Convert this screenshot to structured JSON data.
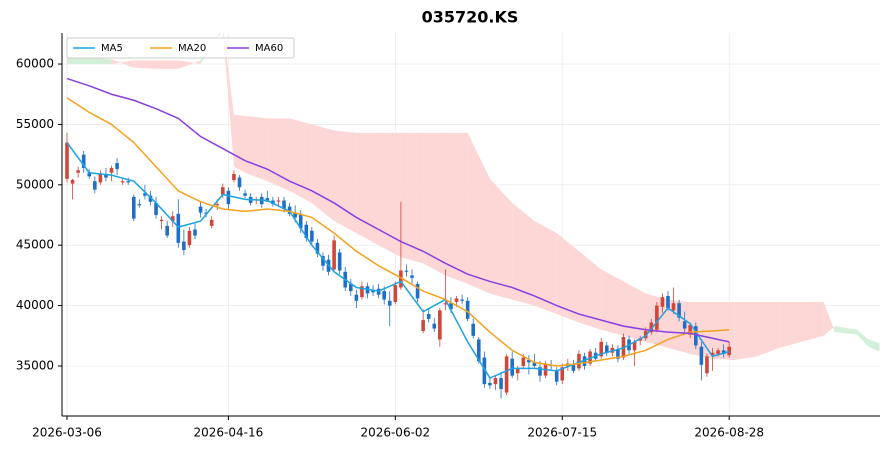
{
  "chart_data": {
    "type": "candlestick",
    "title": "035720.KS",
    "xlim": [
      -0.9,
      146.1
    ],
    "xticks": [
      {
        "value": 0,
        "label": "2026-03-06"
      },
      {
        "value": 29,
        "label": "2026-04-16"
      },
      {
        "value": 59,
        "label": "2026-06-02"
      },
      {
        "value": 89,
        "label": "2026-07-15"
      },
      {
        "value": 119,
        "label": "2026-08-28"
      }
    ],
    "ylim": [
      30860,
      62570
    ],
    "yticks": [
      35000,
      40000,
      45000,
      50000,
      55000,
      60000
    ],
    "grid": true,
    "legend": "upper left",
    "candles": {
      "up_color": "#d0463a",
      "down_color": "#1f6fc8",
      "ohlc": [
        [
          50500,
          54300,
          50200,
          53500
        ],
        [
          50100,
          50500,
          48800,
          50400
        ],
        [
          51000,
          51500,
          50600,
          51200
        ],
        [
          52500,
          52800,
          51000,
          51400
        ],
        [
          51000,
          51300,
          50500,
          50700
        ],
        [
          50300,
          50700,
          49300,
          49600
        ],
        [
          50200,
          51200,
          50000,
          50900
        ],
        [
          50900,
          51400,
          50300,
          50600
        ],
        [
          51000,
          51600,
          50300,
          51400
        ],
        [
          51800,
          52200,
          50800,
          51300
        ],
        [
          50200,
          50500,
          50000,
          50300
        ],
        [
          50300,
          50600,
          50000,
          50200
        ],
        [
          49000,
          49200,
          47000,
          47200
        ],
        [
          48400,
          48800,
          48100,
          48300
        ],
        [
          49300,
          50000,
          48800,
          49100
        ],
        [
          49100,
          49500,
          48300,
          48600
        ],
        [
          48500,
          49000,
          47200,
          47500
        ],
        [
          47000,
          47400,
          46300,
          47100
        ],
        [
          46600,
          47000,
          45600,
          45800
        ],
        [
          47000,
          47800,
          46500,
          47400
        ],
        [
          47600,
          48800,
          44800,
          45200
        ],
        [
          45300,
          46300,
          44200,
          44600
        ],
        [
          45000,
          46500,
          44800,
          46200
        ],
        [
          46300,
          46800,
          45500,
          45800
        ],
        [
          48200,
          48600,
          47300,
          47700
        ],
        [
          47700,
          48000,
          47300,
          47600
        ],
        [
          46600,
          47400,
          46400,
          47100
        ],
        [
          48300,
          48800,
          47900,
          48400
        ],
        [
          49200,
          50100,
          48900,
          49800
        ],
        [
          49500,
          49800,
          48000,
          48400
        ],
        [
          50400,
          51200,
          50200,
          50900
        ],
        [
          50600,
          50800,
          49500,
          49800
        ],
        [
          49300,
          49600,
          48900,
          49100
        ],
        [
          49000,
          49300,
          48300,
          48500
        ],
        [
          48700,
          49000,
          48400,
          48800
        ],
        [
          49000,
          49300,
          48100,
          48400
        ],
        [
          48900,
          49500,
          48600,
          48600
        ],
        [
          48700,
          49000,
          48200,
          48400
        ],
        [
          48600,
          49000,
          48300,
          48700
        ],
        [
          48700,
          49000,
          47700,
          48000
        ],
        [
          48200,
          48500,
          47400,
          47600
        ],
        [
          47700,
          48300,
          46900,
          47300
        ],
        [
          47600,
          47900,
          46000,
          46400
        ],
        [
          46700,
          47000,
          45300,
          45600
        ],
        [
          46200,
          46500,
          45000,
          45300
        ],
        [
          45200,
          45500,
          44000,
          44300
        ],
        [
          44100,
          44400,
          42900,
          43300
        ],
        [
          43800,
          44200,
          42500,
          42800
        ],
        [
          43000,
          45800,
          42800,
          45400
        ],
        [
          44400,
          44700,
          42600,
          42900
        ],
        [
          42800,
          43200,
          41200,
          41500
        ],
        [
          41800,
          42200,
          40800,
          41200
        ],
        [
          40900,
          41300,
          39800,
          40400
        ],
        [
          40700,
          42000,
          40500,
          41600
        ],
        [
          41600,
          41900,
          40600,
          41000
        ],
        [
          41300,
          41700,
          40800,
          41100
        ],
        [
          41400,
          41800,
          40600,
          40900
        ],
        [
          41200,
          41600,
          40100,
          40500
        ],
        [
          40400,
          41200,
          38300,
          40000
        ],
        [
          40300,
          42000,
          40100,
          41700
        ],
        [
          41500,
          48600,
          41300,
          42900
        ],
        [
          42900,
          43400,
          42400,
          42800
        ],
        [
          42500,
          43000,
          41800,
          42300
        ],
        [
          41800,
          42000,
          40300,
          40600
        ],
        [
          37900,
          39700,
          37700,
          38800
        ],
        [
          39300,
          39800,
          38600,
          38900
        ],
        [
          38500,
          39000,
          37800,
          38100
        ],
        [
          37200,
          39800,
          36600,
          39600
        ],
        [
          40100,
          43000,
          39600,
          40200
        ],
        [
          40200,
          40700,
          39400,
          39700
        ],
        [
          40300,
          40800,
          39900,
          40600
        ],
        [
          40500,
          40900,
          40100,
          40400
        ],
        [
          40400,
          40700,
          38700,
          38900
        ],
        [
          38500,
          38900,
          37300,
          37500
        ],
        [
          37200,
          37400,
          35200,
          35400
        ],
        [
          35700,
          36200,
          33200,
          33500
        ],
        [
          33600,
          34000,
          33100,
          33400
        ],
        [
          33500,
          34200,
          33000,
          34000
        ],
        [
          34000,
          34500,
          32300,
          33100
        ],
        [
          32800,
          36000,
          32600,
          35800
        ],
        [
          35600,
          36200,
          34000,
          34200
        ],
        [
          34400,
          35000,
          33800,
          34800
        ],
        [
          35000,
          36000,
          34700,
          35700
        ],
        [
          35500,
          35900,
          34300,
          35300
        ],
        [
          35300,
          36000,
          34800,
          35000
        ],
        [
          34900,
          35400,
          33700,
          34200
        ],
        [
          34200,
          35400,
          34000,
          35200
        ],
        [
          35100,
          35500,
          34700,
          35000
        ],
        [
          34600,
          34900,
          33400,
          33700
        ],
        [
          33800,
          35200,
          33500,
          34900
        ],
        [
          35000,
          35600,
          34600,
          35200
        ],
        [
          35100,
          35500,
          34400,
          34600
        ],
        [
          34800,
          36300,
          34600,
          36000
        ],
        [
          35800,
          36100,
          34700,
          35000
        ],
        [
          35200,
          36400,
          35000,
          36200
        ],
        [
          36100,
          36500,
          35400,
          35600
        ],
        [
          35800,
          37300,
          35600,
          37000
        ],
        [
          36700,
          37000,
          35800,
          36100
        ],
        [
          36100,
          36800,
          35800,
          36500
        ],
        [
          36400,
          36700,
          35300,
          35600
        ],
        [
          35700,
          37700,
          35500,
          37400
        ],
        [
          37200,
          37500,
          36000,
          36300
        ],
        [
          36300,
          37200,
          35000,
          37000
        ],
        [
          37100,
          37500,
          36700,
          37300
        ],
        [
          37300,
          38200,
          37100,
          37900
        ],
        [
          37800,
          38900,
          37600,
          38600
        ],
        [
          38000,
          40300,
          37800,
          40000
        ],
        [
          39900,
          41000,
          39400,
          40700
        ],
        [
          40800,
          41200,
          39600,
          39800
        ],
        [
          39600,
          41500,
          39300,
          40200
        ],
        [
          40200,
          40500,
          38700,
          39000
        ],
        [
          38700,
          39500,
          37800,
          38100
        ],
        [
          37600,
          38600,
          37300,
          38400
        ],
        [
          38300,
          38600,
          36400,
          36700
        ],
        [
          36600,
          37000,
          33800,
          35100
        ],
        [
          34400,
          36000,
          34100,
          35800
        ],
        [
          35900,
          36500,
          34600,
          36100
        ],
        [
          36000,
          36500,
          35800,
          36300
        ],
        [
          36300,
          36800,
          35700,
          36000
        ],
        [
          35900,
          37000,
          35700,
          36600
        ]
      ]
    },
    "cloud": {
      "up_color": "#fdd6d6",
      "down_color": "#d3efd9",
      "x": [
        0,
        4,
        8,
        12,
        16,
        20,
        24,
        28,
        30,
        32,
        36,
        40,
        44,
        48,
        52,
        56,
        60,
        64,
        68,
        72,
        76,
        80,
        84,
        88,
        92,
        96,
        100,
        104,
        108,
        112,
        116,
        120,
        124,
        128,
        136,
        138,
        142,
        144,
        146
      ],
      "span_a": [
        60000,
        60000,
        60000,
        60300,
        60300,
        60300,
        60000,
        63000,
        55800,
        55700,
        55500,
        55500,
        55000,
        54500,
        54300,
        54300,
        54300,
        54300,
        54300,
        54300,
        50500,
        48500,
        47000,
        46000,
        44500,
        43000,
        42000,
        41000,
        40500,
        40300,
        40300,
        40300,
        40300,
        40300,
        40300,
        37800,
        37600,
        36600,
        36200
      ],
      "span_b": [
        60600,
        60500,
        60400,
        59700,
        59600,
        59600,
        60300,
        62800,
        51500,
        51000,
        50300,
        49500,
        48500,
        47000,
        46000,
        45000,
        44000,
        43500,
        42500,
        41800,
        41000,
        40500,
        40000,
        39300,
        38600,
        38000,
        37500,
        37000,
        36500,
        36000,
        35600,
        35500,
        35800,
        36500,
        37500,
        38300,
        38000,
        37200,
        36900
      ]
    },
    "series": [
      {
        "name": "MA5",
        "color": "#1ba3e3",
        "x": [
          0,
          4,
          8,
          12,
          16,
          20,
          24,
          28,
          32,
          36,
          40,
          44,
          48,
          52,
          56,
          60,
          64,
          68,
          72,
          76,
          80,
          84,
          88,
          92,
          96,
          100,
          104,
          108,
          112,
          116,
          119
        ],
        "values": [
          53500,
          51000,
          50800,
          50300,
          48500,
          46500,
          47000,
          49200,
          48800,
          48700,
          47800,
          45000,
          42800,
          41500,
          41200,
          42000,
          39500,
          40500,
          37000,
          34000,
          34800,
          34800,
          34600,
          35300,
          36000,
          36500,
          37500,
          39800,
          38500,
          35800,
          36200
        ]
      },
      {
        "name": "MA20",
        "color": "#f5a11c",
        "x": [
          0,
          4,
          8,
          12,
          16,
          20,
          24,
          28,
          32,
          36,
          40,
          44,
          48,
          52,
          56,
          60,
          64,
          68,
          72,
          76,
          80,
          84,
          88,
          92,
          96,
          100,
          104,
          108,
          112,
          116,
          119
        ],
        "values": [
          57200,
          56000,
          55000,
          53500,
          51500,
          49500,
          48600,
          48000,
          47800,
          48000,
          47800,
          47300,
          46000,
          44500,
          43300,
          42300,
          41200,
          40500,
          39500,
          37800,
          36300,
          35300,
          35000,
          35200,
          35500,
          35800,
          36300,
          37200,
          37800,
          37900,
          38000
        ]
      },
      {
        "name": "MA60",
        "color": "#8a3fe0",
        "x": [
          0,
          4,
          8,
          12,
          16,
          20,
          24,
          28,
          32,
          36,
          40,
          44,
          48,
          52,
          56,
          60,
          64,
          68,
          72,
          76,
          80,
          84,
          88,
          92,
          96,
          100,
          104,
          108,
          112,
          116,
          119
        ],
        "values": [
          58800,
          58200,
          57500,
          57000,
          56300,
          55500,
          54000,
          53000,
          52000,
          51300,
          50300,
          49500,
          48500,
          47300,
          46300,
          45300,
          44500,
          43500,
          42600,
          42000,
          41500,
          40800,
          40000,
          39300,
          38800,
          38300,
          38000,
          37800,
          37700,
          37300,
          37000
        ]
      }
    ]
  }
}
